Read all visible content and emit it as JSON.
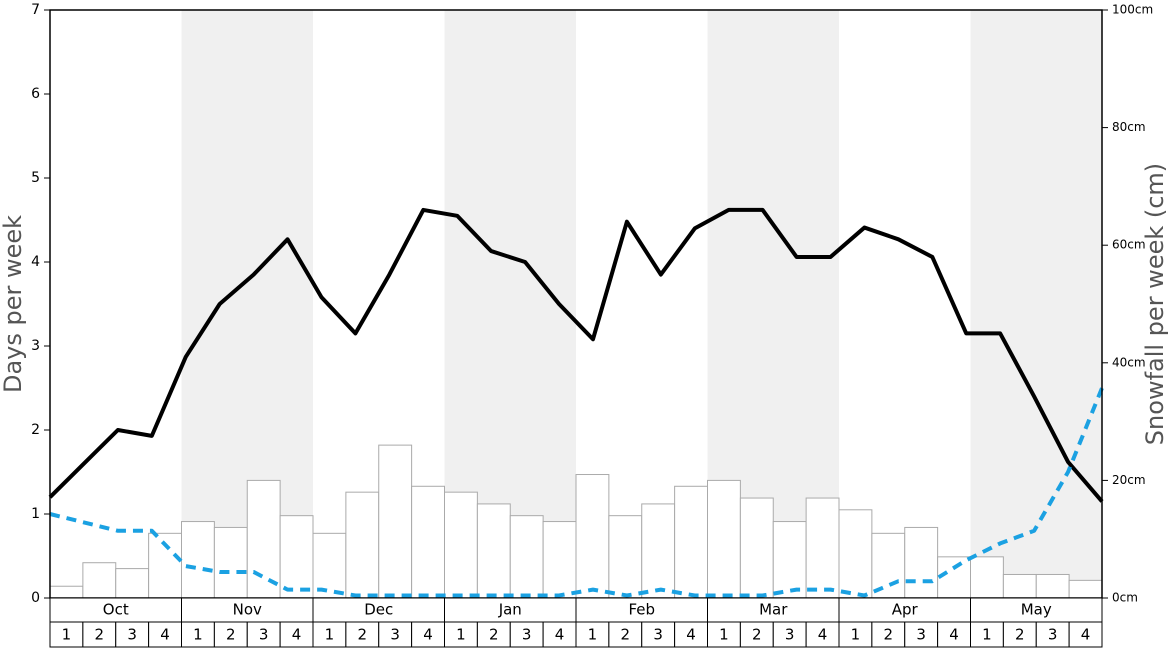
{
  "chart_data": {
    "type": "combo",
    "ylabel": "Days per week",
    "y2label": "Snowfall per week (cm)",
    "months": [
      "Oct",
      "Nov",
      "Dec",
      "Jan",
      "Feb",
      "Mar",
      "Apr",
      "May"
    ],
    "categories": [
      "1",
      "2",
      "3",
      "4",
      "1",
      "2",
      "3",
      "4",
      "1",
      "2",
      "3",
      "4",
      "1",
      "2",
      "3",
      "4",
      "1",
      "2",
      "3",
      "4",
      "1",
      "2",
      "3",
      "4",
      "1",
      "2",
      "3",
      "4",
      "1",
      "2",
      "3",
      "4"
    ],
    "ylim": [
      0,
      7
    ],
    "yticks": [
      0,
      1,
      2,
      3,
      4,
      5,
      6,
      7
    ],
    "y2lim": [
      0,
      100
    ],
    "y2ticks": [
      {
        "value": 0,
        "label": "0cm"
      },
      {
        "value": 20,
        "label": "20cm"
      },
      {
        "value": 40,
        "label": "40cm"
      },
      {
        "value": 60,
        "label": "60cm"
      },
      {
        "value": 80,
        "label": "80cm"
      },
      {
        "value": 100,
        "label": "100cm"
      }
    ],
    "band_color": "#f0f0f0",
    "series": [
      {
        "type": "bar",
        "axis": "y2",
        "color": "#ffffff",
        "edge_color": "#aaaaaa",
        "values": [
          2,
          6,
          5,
          11,
          13,
          12,
          20,
          14,
          11,
          18,
          26,
          19,
          18,
          16,
          14,
          13,
          21,
          14,
          16,
          19,
          20,
          17,
          13,
          17,
          15,
          11,
          12,
          7,
          7,
          4,
          4,
          3
        ]
      },
      {
        "type": "line",
        "axis": "y",
        "color": "#000000",
        "line_style": "solid",
        "values": [
          1.2,
          1.6,
          2.0,
          1.93,
          2.87,
          3.5,
          3.85,
          4.27,
          3.58,
          3.15,
          3.85,
          4.62,
          4.55,
          4.13,
          4.0,
          3.5,
          3.08,
          4.48,
          3.85,
          4.4,
          4.62,
          4.62,
          4.06,
          4.06,
          4.41,
          4.27,
          4.06,
          3.15,
          3.15,
          2.4,
          1.62,
          1.15
        ]
      },
      {
        "type": "line",
        "axis": "y",
        "color": "#1ba1e2",
        "line_style": "dashed",
        "values": [
          1.0,
          0.9,
          0.8,
          0.8,
          0.38,
          0.31,
          0.31,
          0.1,
          0.1,
          0.03,
          0.03,
          0.03,
          0.03,
          0.03,
          0.03,
          0.03,
          0.1,
          0.03,
          0.1,
          0.03,
          0.03,
          0.03,
          0.1,
          0.1,
          0.03,
          0.2,
          0.2,
          0.45,
          0.65,
          0.8,
          1.5,
          2.5
        ]
      }
    ]
  }
}
